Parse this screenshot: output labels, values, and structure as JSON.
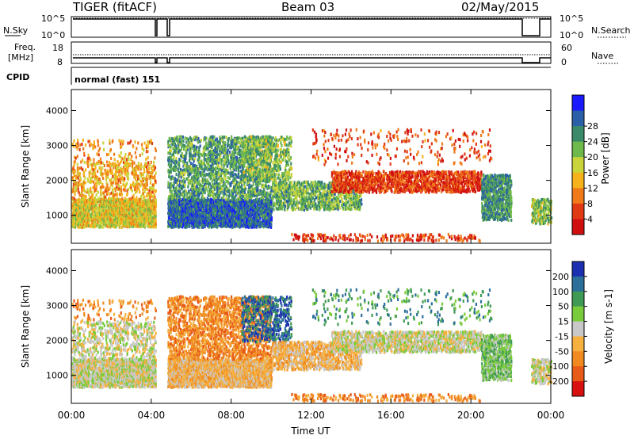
{
  "header": {
    "title": "TIGER (fitACF)",
    "beam": "Beam 03",
    "date": "02/May/2015"
  },
  "strip_noise": {
    "left_label": "N.Sky",
    "right_label": "N.Search",
    "left_ticks": [
      "10^5",
      "10^0"
    ],
    "right_ticks": [
      "10^5",
      "10^0"
    ]
  },
  "strip_freq": {
    "left_label_line1": "Freq.",
    "left_label_line2": "[MHz]",
    "right_label": "Nave",
    "left_ticks": [
      "18",
      "8"
    ],
    "right_ticks": [
      "60",
      "0"
    ]
  },
  "strip_cpid": {
    "label": "CPID",
    "value": "normal (fast) 151"
  },
  "chart_data": [
    {
      "type": "heatmap",
      "name": "power",
      "ylabel": "Slant Range [km]",
      "ylim": [
        200,
        4600
      ],
      "yticks": [
        "1000",
        "2000",
        "3000",
        "4000"
      ],
      "colorbar_label": "Power [dB]",
      "colorbar_ticks": [
        "4",
        "8",
        "12",
        "16",
        "20",
        "24",
        "28"
      ],
      "colorbar_colors": [
        "#1a1aff",
        "#2b5fa8",
        "#3a8a6a",
        "#6fb84c",
        "#c8d43a",
        "#f5b21c",
        "#f07a1a",
        "#e03a14",
        "#d01010"
      ]
    },
    {
      "type": "heatmap",
      "name": "velocity",
      "ylabel": "Slant Range [km]",
      "ylim": [
        200,
        4600
      ],
      "yticks": [
        "1000",
        "2000",
        "3000",
        "4000"
      ],
      "colorbar_label": "Velocity [m s-1]",
      "colorbar_ticks": [
        "200",
        "100",
        "50",
        "15",
        "-15",
        "-50",
        "-100",
        "-200"
      ],
      "colorbar_colors": [
        "#1c2fb0",
        "#2c6f9a",
        "#3f9a55",
        "#7acb3c",
        "#c8c8c8",
        "#f5b040",
        "#f08a20",
        "#e85a18",
        "#d81010"
      ]
    }
  ],
  "xaxis": {
    "label": "Time UT",
    "ticks": [
      "00:00",
      "04:00",
      "08:00",
      "12:00",
      "16:00",
      "20:00",
      "00:00"
    ]
  }
}
